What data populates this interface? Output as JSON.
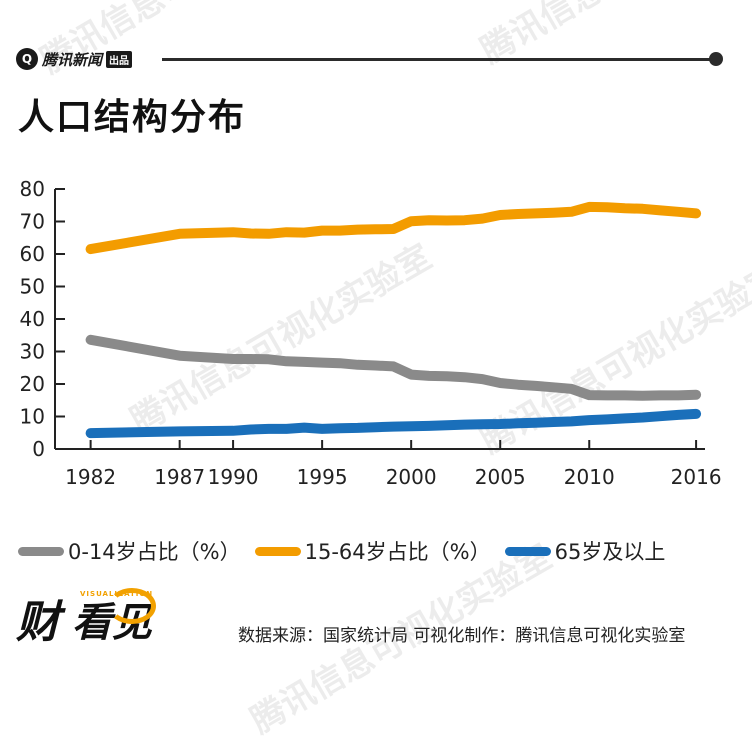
{
  "brand": {
    "logo_glyph": "Q",
    "name": "腾讯新闻",
    "tag": "出品"
  },
  "title": "人口结构分布",
  "watermark_text": "腾讯信息可视化实验室",
  "chart_data": {
    "type": "line",
    "title": "人口结构分布",
    "xlabel": "",
    "ylabel": "",
    "xlim": [
      1980,
      2016.5
    ],
    "ylim": [
      0,
      80
    ],
    "x_ticks": [
      1982,
      1987,
      1990,
      1995,
      2000,
      2005,
      2010,
      2016
    ],
    "y_ticks": [
      0,
      10,
      20,
      30,
      40,
      50,
      60,
      70,
      80
    ],
    "grid": false,
    "legend_position": "bottom",
    "series": [
      {
        "name": "0-14岁占比（%）",
        "color": "#8a8a8a",
        "x": [
          1982,
          1987,
          1990,
          1991,
          1992,
          1993,
          1994,
          1995,
          1996,
          1997,
          1998,
          1999,
          2000,
          2001,
          2002,
          2003,
          2004,
          2005,
          2006,
          2007,
          2008,
          2009,
          2010,
          2011,
          2012,
          2013,
          2014,
          2015,
          2016
        ],
        "y": [
          33.6,
          28.7,
          27.7,
          27.7,
          27.6,
          27.0,
          26.8,
          26.6,
          26.4,
          25.9,
          25.7,
          25.4,
          22.9,
          22.5,
          22.4,
          22.1,
          21.5,
          20.3,
          19.8,
          19.4,
          19.0,
          18.5,
          16.6,
          16.5,
          16.5,
          16.4,
          16.5,
          16.5,
          16.7
        ]
      },
      {
        "name": "15-64岁占比（%）",
        "color": "#f39c00",
        "x": [
          1982,
          1987,
          1990,
          1991,
          1992,
          1993,
          1994,
          1995,
          1996,
          1997,
          1998,
          1999,
          2000,
          2001,
          2002,
          2003,
          2004,
          2005,
          2006,
          2007,
          2008,
          2009,
          2010,
          2011,
          2012,
          2013,
          2014,
          2015,
          2016
        ],
        "y": [
          61.5,
          66.2,
          66.7,
          66.3,
          66.2,
          66.7,
          66.6,
          67.2,
          67.2,
          67.5,
          67.6,
          67.7,
          70.1,
          70.4,
          70.3,
          70.4,
          70.9,
          72.0,
          72.3,
          72.5,
          72.7,
          73.0,
          74.5,
          74.4,
          74.1,
          73.9,
          73.4,
          73.0,
          72.5
        ]
      },
      {
        "name": "65岁及以上",
        "color": "#1a6fba",
        "x": [
          1982,
          1987,
          1990,
          1991,
          1992,
          1993,
          1994,
          1995,
          1996,
          1997,
          1998,
          1999,
          2000,
          2001,
          2002,
          2003,
          2004,
          2005,
          2006,
          2007,
          2008,
          2009,
          2010,
          2011,
          2012,
          2013,
          2014,
          2015,
          2016
        ],
        "y": [
          4.9,
          5.4,
          5.6,
          6.0,
          6.2,
          6.2,
          6.6,
          6.2,
          6.4,
          6.5,
          6.7,
          6.9,
          7.0,
          7.1,
          7.3,
          7.5,
          7.6,
          7.7,
          7.9,
          8.1,
          8.3,
          8.5,
          8.9,
          9.1,
          9.4,
          9.7,
          10.1,
          10.5,
          10.8
        ]
      }
    ]
  },
  "source_text": "数据来源：国家统计局 可视化制作：腾讯信息可视化实验室",
  "footer_logo": {
    "cai": "财",
    "kan": "看见",
    "tag": "VISUALIZATION"
  }
}
